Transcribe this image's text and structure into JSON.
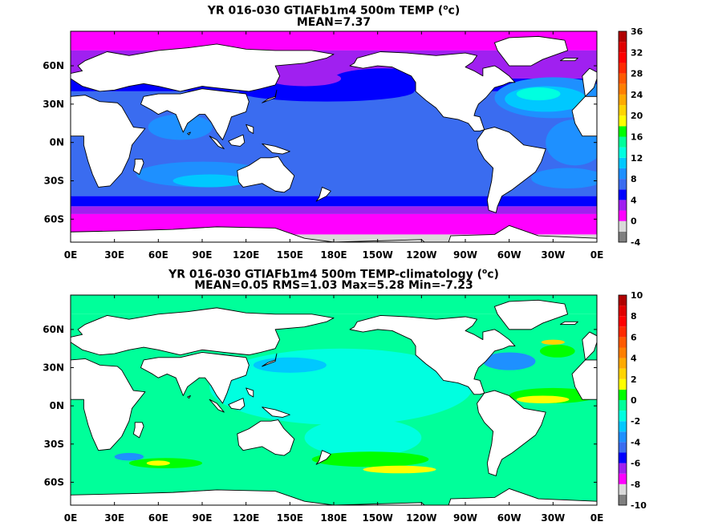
{
  "chart_data": [
    {
      "type": "heatmap",
      "title_line1_prefix": "YR 016-030 GTIAFb1m4 500m TEMP (",
      "title_unit_sup": "o",
      "title_unit_suffix": "c)",
      "title_line2": "MEAN=7.37",
      "xticks": [
        "0E",
        "30E",
        "60E",
        "90E",
        "120E",
        "150E",
        "180E",
        "150W",
        "120W",
        "90W",
        "60W",
        "30W",
        "0E"
      ],
      "xlim": [
        0,
        360
      ],
      "yticks": [
        {
          "lat": 60,
          "label": "60N"
        },
        {
          "lat": 30,
          "label": "30N"
        },
        {
          "lat": 0,
          "label": "0N"
        },
        {
          "lat": -30,
          "label": "30S"
        },
        {
          "lat": -60,
          "label": "60S"
        }
      ],
      "ylim": [
        -78,
        87
      ],
      "colorbar": {
        "ticks": [
          "-4",
          "0",
          "4",
          "8",
          "12",
          "16",
          "20",
          "24",
          "28",
          "32",
          "36"
        ],
        "colors": [
          "#7f7f7f",
          "#d9d9d9",
          "#ff00ff",
          "#a020f0",
          "#0000ff",
          "#3a6cf0",
          "#1e90ff",
          "#00c8ff",
          "#00ffe0",
          "#00ff9a",
          "#00ff00",
          "#ffff00",
          "#ffd400",
          "#ffaa00",
          "#ff7f00",
          "#ff5a00",
          "#ff2a00",
          "#ff0000",
          "#e00000",
          "#b00000"
        ]
      }
    },
    {
      "type": "heatmap",
      "title_line1_prefix": "YR 016-030 GTIAFb1m4 500m TEMP-climatology (",
      "title_unit_sup": "o",
      "title_unit_suffix": "c)",
      "title_line2": "MEAN=0.05   RMS=1.03   Max=5.28   Min=-7.23",
      "xticks": [
        "0E",
        "30E",
        "60E",
        "90E",
        "120E",
        "150E",
        "180E",
        "150W",
        "120W",
        "90W",
        "60W",
        "30W",
        "0E"
      ],
      "xlim": [
        0,
        360
      ],
      "yticks": [
        {
          "lat": 60,
          "label": "60N"
        },
        {
          "lat": 30,
          "label": "30N"
        },
        {
          "lat": 0,
          "label": "0N"
        },
        {
          "lat": -30,
          "label": "30S"
        },
        {
          "lat": -60,
          "label": "60S"
        }
      ],
      "ylim": [
        -78,
        87
      ],
      "colorbar": {
        "ticks": [
          "-10",
          "-8",
          "-6",
          "-4",
          "-2",
          "0",
          "2",
          "4",
          "6",
          "8",
          "10"
        ],
        "colors": [
          "#7f7f7f",
          "#d9d9d9",
          "#ff00ff",
          "#a020f0",
          "#0000ff",
          "#3a6cf0",
          "#1e90ff",
          "#00c8ff",
          "#00ffe0",
          "#00ff9a",
          "#00ff00",
          "#ffff00",
          "#ffd400",
          "#ffaa00",
          "#ff7f00",
          "#ff5a00",
          "#ff2a00",
          "#ff0000",
          "#e00000",
          "#b00000"
        ]
      }
    }
  ]
}
